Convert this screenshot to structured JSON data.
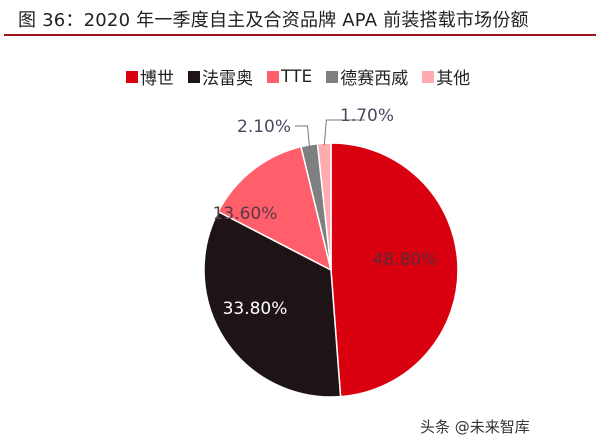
{
  "chart_data": {
    "type": "pie",
    "title": "图 36：2020 年一季度自主及合资品牌 APA 前装搭载市场份额",
    "legend_placement": "top",
    "start_angle": "12 o'clock, clockwise",
    "series": [
      {
        "name": "博世",
        "value": 48.8,
        "label": "48.80%",
        "color": "#d9000f",
        "label_color": "#5a2a35"
      },
      {
        "name": "法雷奥",
        "value": 33.8,
        "label": "33.80%",
        "color": "#1e1416",
        "label_color": "#ffffff"
      },
      {
        "name": "TTE",
        "value": 13.6,
        "label": "13.60%",
        "color": "#fe5f6a",
        "label_color": "#5a3a45"
      },
      {
        "name": "德赛西威",
        "value": 2.1,
        "label": "2.10%",
        "color": "#7d7f80",
        "label_color": "#4a4a60"
      },
      {
        "name": "其他",
        "value": 1.7,
        "label": "1.70%",
        "color": "#ffabb0",
        "label_color": "#4a4a60"
      }
    ]
  },
  "watermark": "头条 @未来智库",
  "accent_rule_color": "#a0141e"
}
